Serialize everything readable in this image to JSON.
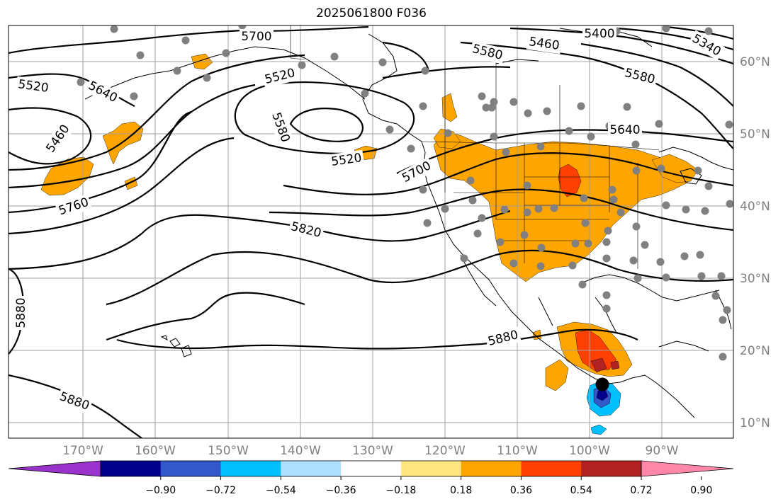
{
  "title": "2025061800 F036",
  "map": {
    "lon_ticks": [
      "170°W",
      "160°W",
      "150°W",
      "140°W",
      "130°W",
      "120°W",
      "110°W",
      "100°W",
      "90°W"
    ],
    "lat_ticks": [
      "60°N",
      "50°N",
      "40°N",
      "30°N",
      "20°N",
      "10°N"
    ],
    "gridline_color": "#a0a0a0",
    "coast_color": "#000000",
    "station_color": "#808080",
    "contour_color": "#000000",
    "contour_labels": [
      "5700",
      "5400",
      "5340",
      "5460",
      "5580",
      "5520",
      "5640",
      "5520",
      "5580",
      "5520",
      "5460",
      "5640",
      "5580",
      "5700",
      "5760",
      "5820",
      "5880",
      "5880",
      "5880"
    ]
  },
  "colorbar": {
    "ticks": [
      "−0.90",
      "−0.72",
      "−0.54",
      "−0.36",
      "−0.18",
      "0.18",
      "0.36",
      "0.54",
      "0.72",
      "0.90"
    ],
    "colors": [
      "#9933cc",
      "#00008b",
      "#3358cc",
      "#00bfff",
      "#b0e0ff",
      "#ffffff",
      "#ffe680",
      "#ffa500",
      "#ff4000",
      "#b22222",
      "#ff88aa"
    ]
  },
  "fill_colors": {
    "orange": "#ffa500",
    "red_orange": "#ff4000",
    "dark_red": "#b22222",
    "yellow": "#ffe680",
    "blue": "#00bfff",
    "mid_blue": "#3358cc",
    "navy": "#00008b"
  },
  "storm_marker_color": "#000000"
}
